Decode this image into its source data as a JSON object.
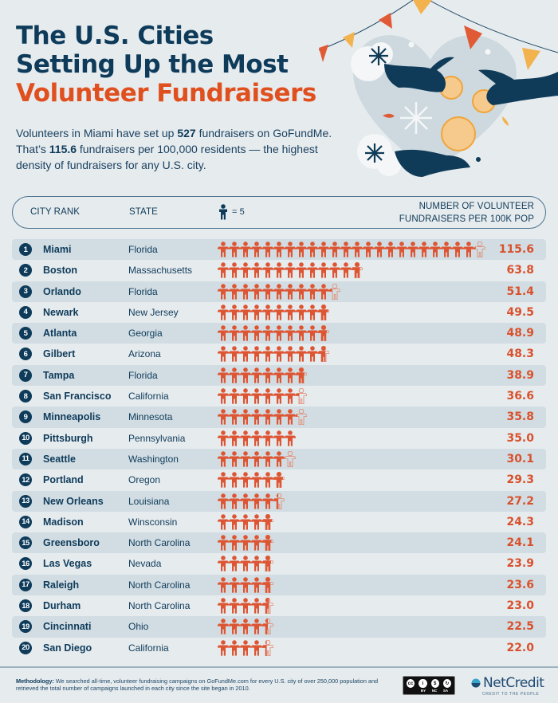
{
  "title": {
    "line1": "The U.S. Cities",
    "line2": "Setting Up the Most",
    "line3": "Volunteer Fundraisers"
  },
  "intro": {
    "p1a": "Volunteers in Miami have set up ",
    "p1b": "527",
    "p1c": " fundraisers on GoFundMe.",
    "p2a": "That’s ",
    "p2b": "115.6",
    "p2c": " fundraisers per 100,000 residents — the highest",
    "p3": "density of fundraisers for any U.S. city."
  },
  "header": {
    "rank": "City Rank",
    "state": "State",
    "legend": "= 5",
    "metric_line1": "Number of Volunteer",
    "metric_line2": "Fundraisers per 100K Pop"
  },
  "colors": {
    "navy": "#0e3b5a",
    "orange": "#e0501f",
    "value_red": "#d9512c",
    "row_shade": "#d2dde3",
    "background": "#e6ebee"
  },
  "icons": {
    "legend": "person-icon",
    "unit": "person-icon"
  },
  "chart_data": {
    "type": "bar",
    "title": "The U.S. Cities Setting Up the Most Volunteer Fundraisers",
    "subtitle": "Volunteers in Miami have set up 527 fundraisers on GoFundMe. That’s 115.6 fundraisers per 100,000 residents — the highest density of fundraisers for any U.S. city.",
    "xlabel": "",
    "ylabel": "Number of volunteer fundraisers per 100K pop",
    "unit_note": "1 person icon = 5",
    "orientation": "horizontal pictogram",
    "categories": [
      "Miami",
      "Boston",
      "Orlando",
      "Newark",
      "Atlanta",
      "Gilbert",
      "Tampa",
      "San Francisco",
      "Minneapolis",
      "Pittsburgh",
      "Seattle",
      "Portland",
      "New Orleans",
      "Madison",
      "Greensboro",
      "Las Vegas",
      "Raleigh",
      "Durham",
      "Cincinnati",
      "San Diego"
    ],
    "values": [
      115.6,
      63.8,
      51.4,
      49.5,
      48.9,
      48.3,
      38.9,
      36.6,
      35.8,
      35.0,
      30.1,
      29.3,
      27.2,
      24.3,
      24.1,
      23.9,
      23.6,
      23.0,
      22.5,
      22.0
    ]
  },
  "rows": [
    {
      "rank": "1",
      "city": "Miami",
      "state": "Florida",
      "value": "115.6"
    },
    {
      "rank": "2",
      "city": "Boston",
      "state": "Massachusetts",
      "value": "63.8"
    },
    {
      "rank": "3",
      "city": "Orlando",
      "state": "Florida",
      "value": "51.4"
    },
    {
      "rank": "4",
      "city": "Newark",
      "state": "New Jersey",
      "value": "49.5"
    },
    {
      "rank": "5",
      "city": "Atlanta",
      "state": "Georgia",
      "value": "48.9"
    },
    {
      "rank": "6",
      "city": "Gilbert",
      "state": "Arizona",
      "value": "48.3"
    },
    {
      "rank": "7",
      "city": "Tampa",
      "state": "Florida",
      "value": "38.9"
    },
    {
      "rank": "8",
      "city": "San Francisco",
      "state": "California",
      "value": "36.6"
    },
    {
      "rank": "9",
      "city": "Minneapolis",
      "state": "Minnesota",
      "value": "35.8"
    },
    {
      "rank": "10",
      "city": "Pittsburgh",
      "state": "Pennsylvania",
      "value": "35.0"
    },
    {
      "rank": "11",
      "city": "Seattle",
      "state": "Washington",
      "value": "30.1"
    },
    {
      "rank": "12",
      "city": "Portland",
      "state": "Oregon",
      "value": "29.3"
    },
    {
      "rank": "13",
      "city": "New Orleans",
      "state": "Louisiana",
      "value": "27.2"
    },
    {
      "rank": "14",
      "city": "Madison",
      "state": "Winsconsin",
      "value": "24.3"
    },
    {
      "rank": "15",
      "city": "Greensboro",
      "state": "North Carolina",
      "value": "24.1"
    },
    {
      "rank": "16",
      "city": "Las Vegas",
      "state": "Nevada",
      "value": "23.9"
    },
    {
      "rank": "17",
      "city": "Raleigh",
      "state": "North Carolina",
      "value": "23.6"
    },
    {
      "rank": "18",
      "city": "Durham",
      "state": "North Carolina",
      "value": "23.0"
    },
    {
      "rank": "19",
      "city": "Cincinnati",
      "state": "Ohio",
      "value": "22.5"
    },
    {
      "rank": "20",
      "city": "San Diego",
      "state": "California",
      "value": "22.0"
    }
  ],
  "footer": {
    "methodology_label": "Methodology:",
    "methodology_text": " We searched all-time, volunteer fundraising campaigns on GoFundMe.com for every U.S. city of over 250,000 population and retrieved the total number of campaigns launched in each city since the site began in 2010.",
    "license": {
      "cc": "cc",
      "by": "BY",
      "nc": "NC",
      "sa": "SA"
    },
    "brand_name": "NetCredit",
    "brand_tagline": "CREDIT TO THE PEOPLE"
  }
}
